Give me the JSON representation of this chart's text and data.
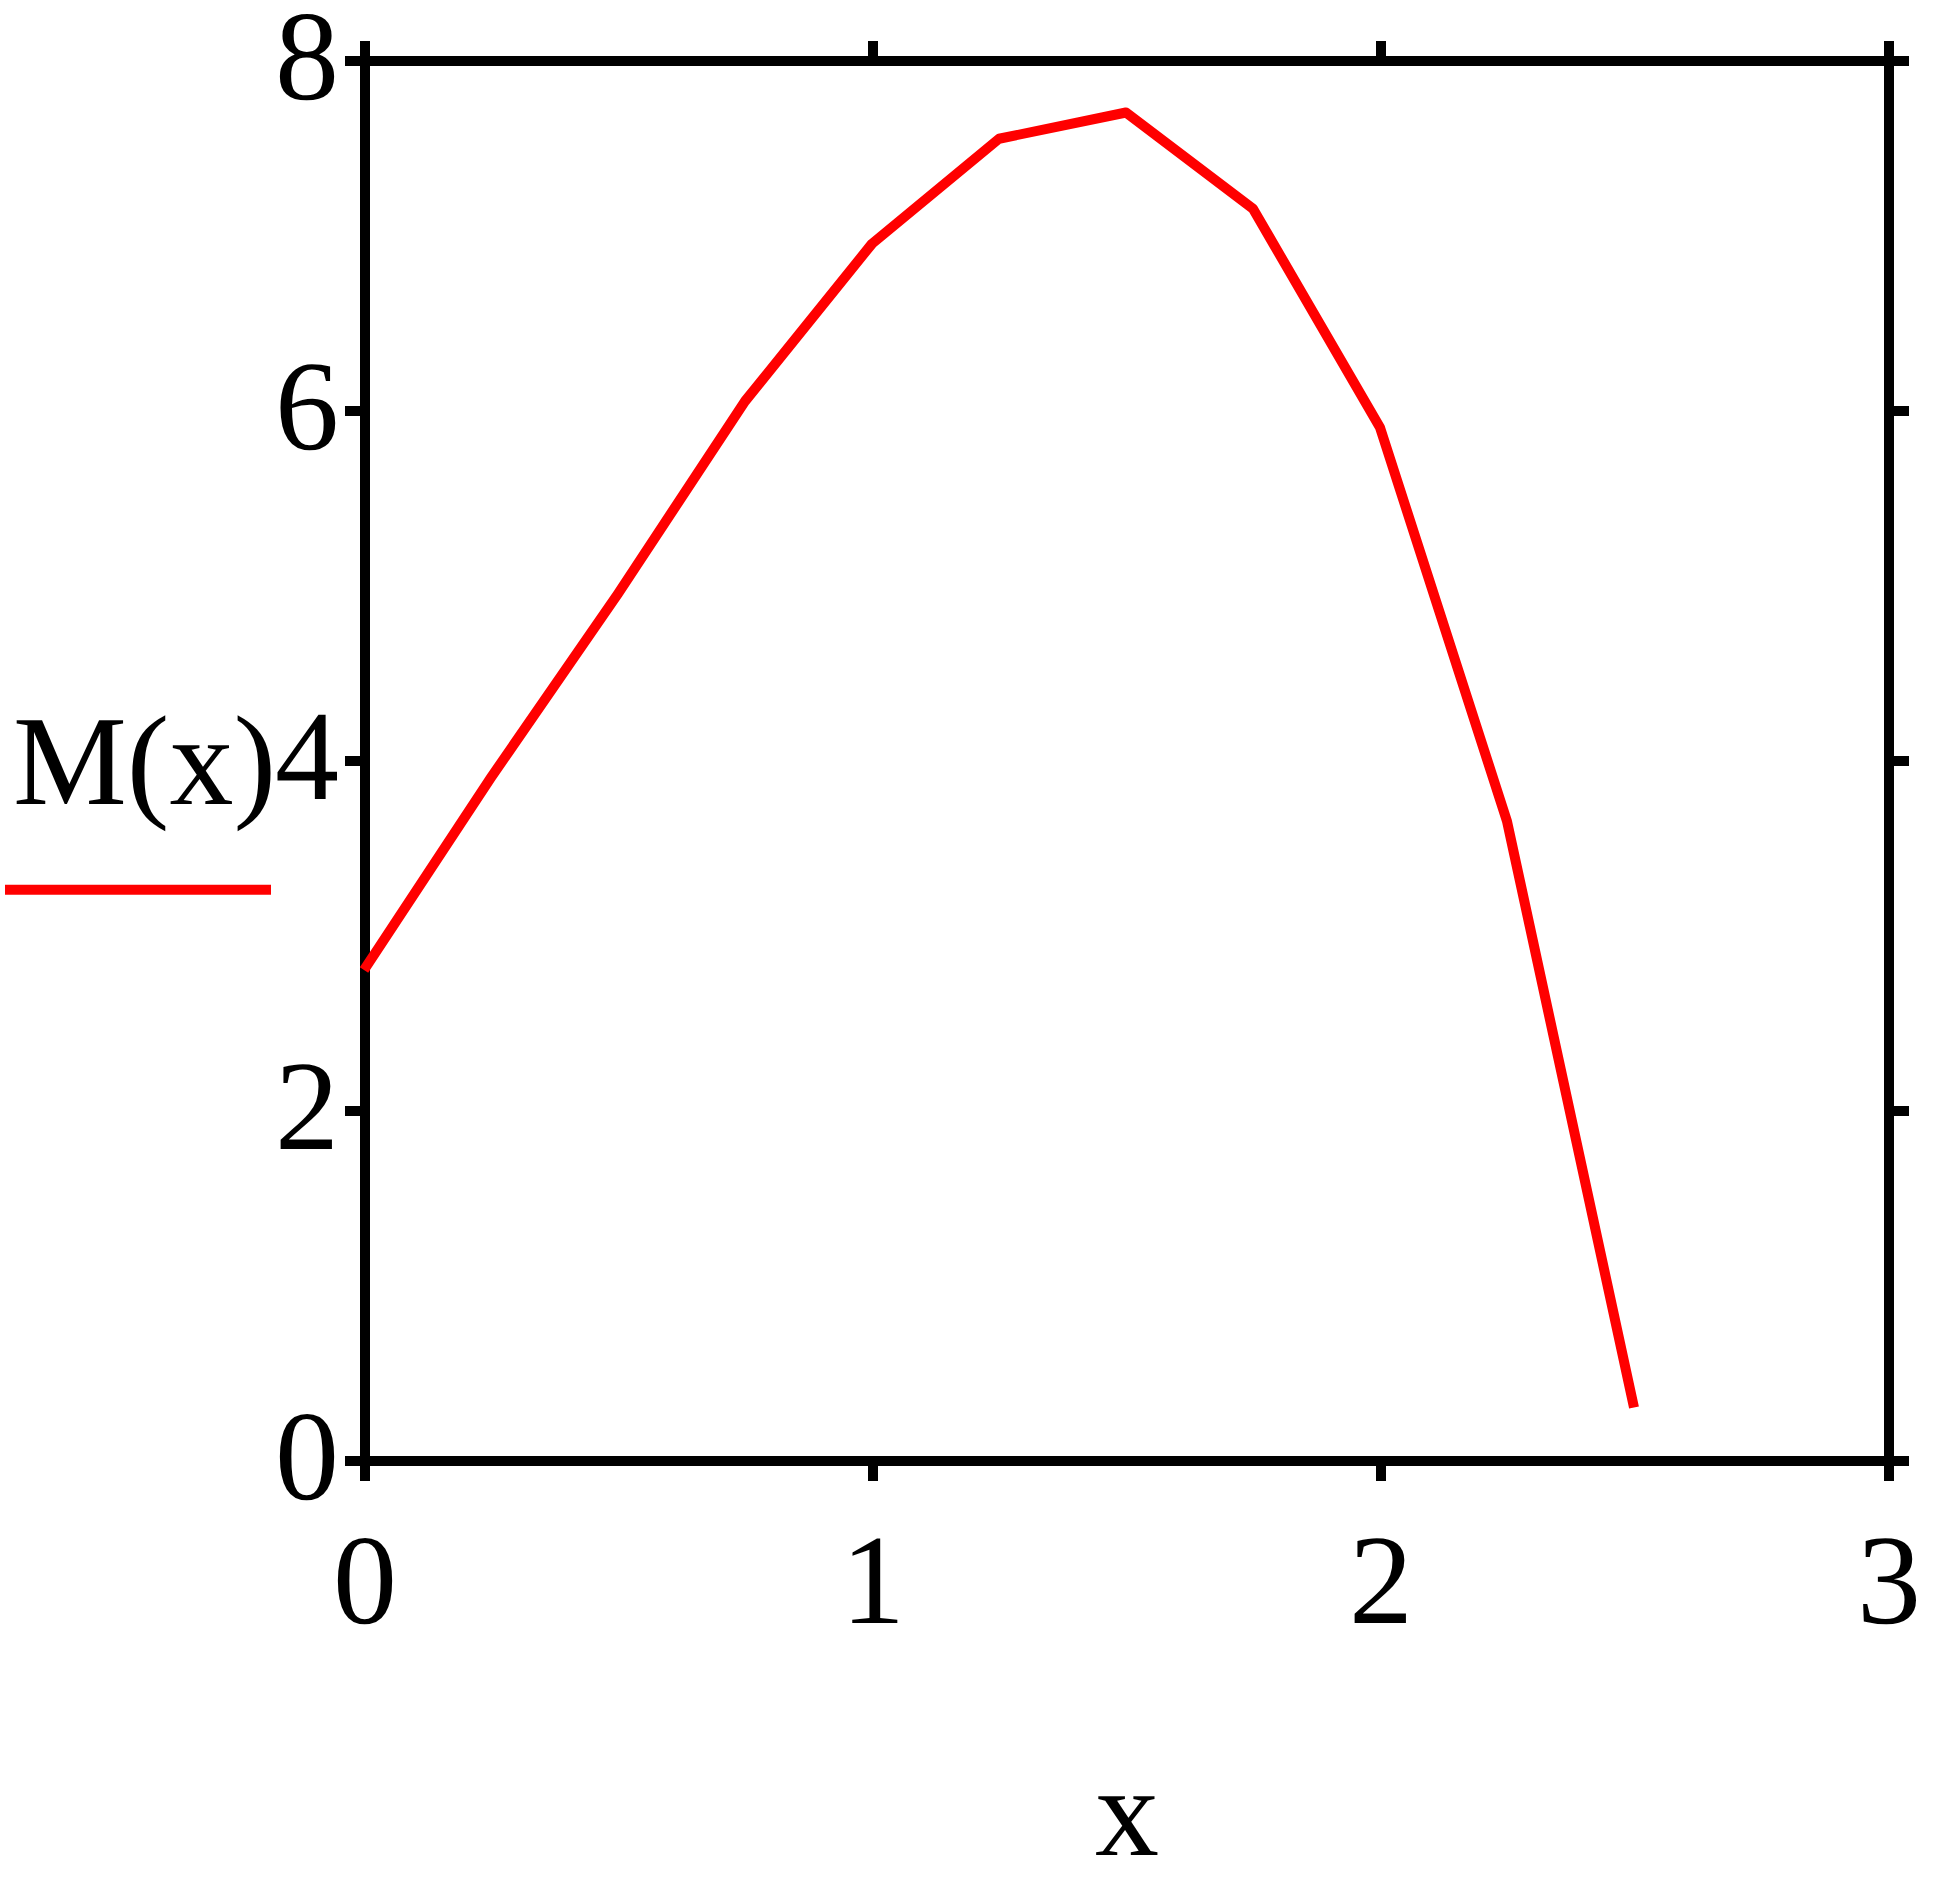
{
  "chart_data": {
    "type": "line",
    "xlabel": "x",
    "x": [
      0,
      0.25,
      0.5,
      0.75,
      1,
      1.25,
      1.5,
      1.75,
      2,
      2.25,
      2.5
    ],
    "series": [
      {
        "name": "M(x)",
        "color": "#ff0000",
        "values": [
          2.8,
          3.9,
          4.95,
          6.05,
          6.95,
          7.55,
          7.7,
          7.15,
          5.9,
          3.65,
          0.3
        ]
      }
    ],
    "xlim": [
      0,
      3
    ],
    "ylim": [
      0,
      8
    ],
    "xticks": [
      0,
      1,
      2,
      3
    ],
    "yticks": [
      0,
      2,
      4,
      6,
      8
    ],
    "legend": "left",
    "line_style": "solid"
  }
}
